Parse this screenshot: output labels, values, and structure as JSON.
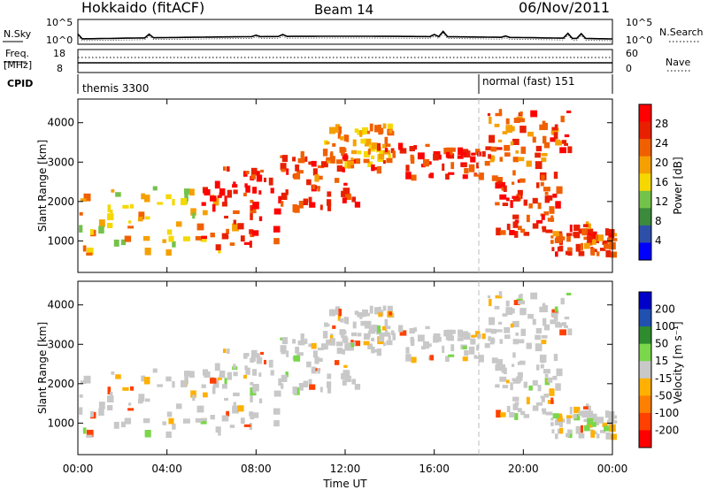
{
  "header": {
    "station": "Hokkaido (fitACF)",
    "beam": "Beam 14",
    "date": "06/Nov/2011"
  },
  "status_panels": {
    "nsky": {
      "label": "N.Sky",
      "top_tick": "10^5",
      "bottom_tick": "10^0"
    },
    "nsearch": {
      "label": "N.Search",
      "top_tick": "10^5",
      "bottom_tick": "10^0"
    },
    "freq": {
      "label_line1": "Freq.",
      "label_line2": "[MHz]",
      "top_tick": "18",
      "bottom_tick": "8"
    },
    "nave": {
      "label": "Nave",
      "top_tick": "60",
      "bottom_tick": "0"
    },
    "cpid": {
      "label": "CPID",
      "segments": [
        {
          "name": "themis 3300",
          "start_hour": 0
        },
        {
          "name": "normal (fast) 151",
          "start_hour": 18
        }
      ]
    }
  },
  "colors": {
    "power_scale": [
      "#0000ff",
      "#2e4fa8",
      "#3c8a3c",
      "#73c24a",
      "#f5d800",
      "#f5a000",
      "#f06000",
      "#e82000",
      "#ff0000"
    ],
    "velocity_scale": [
      "#ff0000",
      "#ff4000",
      "#ff8000",
      "#ffb000",
      "#c8c8c8",
      "#7ad64a",
      "#2e8b2e",
      "#2050b0",
      "#0000c8"
    ],
    "ground_scatter": "#c8c8c8"
  },
  "chart_data": [
    {
      "type": "heatmap",
      "name": "power",
      "xlabel": "",
      "ylabel": "Slant Range [km]",
      "x_ticks": [
        "00:00",
        "04:00",
        "08:00",
        "12:00",
        "16:00",
        "20:00",
        "00:00"
      ],
      "xlim_hours": [
        0,
        24
      ],
      "ylim": [
        200,
        4600
      ],
      "y_ticks": [
        1000,
        2000,
        3000,
        4000
      ],
      "colorbar": {
        "label": "Power [dB]",
        "range": [
          0,
          32
        ],
        "ticks": [
          "4",
          "8",
          "12",
          "16",
          "20",
          "24",
          "28"
        ]
      },
      "echo_bands": [
        {
          "start_hour": 0.0,
          "end_hour": 7.0,
          "range_low": 700,
          "range_high": 2400,
          "level_db": 18
        },
        {
          "start_hour": 5.5,
          "end_hour": 9.0,
          "range_low": 900,
          "range_high": 2900,
          "level_db": 28
        },
        {
          "start_hour": 9.0,
          "end_hour": 12.5,
          "range_low": 1900,
          "range_high": 3300,
          "level_db": 26
        },
        {
          "start_hour": 11.0,
          "end_hour": 14.0,
          "range_low": 3000,
          "range_high": 4000,
          "level_db": 20
        },
        {
          "start_hour": 13.0,
          "end_hour": 18.5,
          "range_low": 2600,
          "range_high": 3500,
          "level_db": 26
        },
        {
          "start_hour": 18.5,
          "end_hour": 21.5,
          "range_low": 1200,
          "range_high": 2800,
          "level_db": 27
        },
        {
          "start_hour": 21.0,
          "end_hour": 24.0,
          "range_low": 700,
          "range_high": 1500,
          "level_db": 25
        },
        {
          "start_hour": 18.3,
          "end_hour": 22.0,
          "range_low": 3000,
          "range_high": 4400,
          "level_db": 24
        }
      ]
    },
    {
      "type": "heatmap",
      "name": "velocity",
      "xlabel": "Time UT",
      "ylabel": "Slant Range [km]",
      "x_ticks": [
        "00:00",
        "04:00",
        "08:00",
        "12:00",
        "16:00",
        "20:00",
        "00:00"
      ],
      "xlim_hours": [
        0,
        24
      ],
      "ylim": [
        200,
        4600
      ],
      "y_ticks": [
        1000,
        2000,
        3000,
        4000
      ],
      "colorbar": {
        "label": "Velocity [m s⁻¹]",
        "ticks": [
          "200",
          "100",
          "50",
          "15",
          "-15",
          "-50",
          "-100",
          "-200"
        ]
      }
    }
  ]
}
